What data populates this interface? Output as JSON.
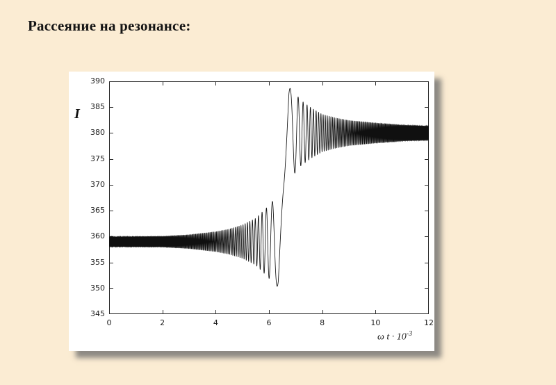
{
  "slide": {
    "title": "Рассеяние на резонансе:",
    "background_color": "#FBECD3",
    "title_color": "#141414"
  },
  "panel": {
    "background_color": "#FFFFFF",
    "shadow_color": "#686868"
  },
  "chart_data": {
    "type": "line",
    "title": "",
    "xlabel": "ω t · 10⁻³",
    "xlabel_main": "ω t · 10",
    "xlabel_sup": "-3",
    "ylabel": "I",
    "xlim": [
      0,
      12
    ],
    "ylim": [
      345,
      390
    ],
    "xticks": [
      0,
      2,
      4,
      6,
      8,
      10,
      12
    ],
    "yticks": [
      345,
      350,
      355,
      360,
      365,
      370,
      375,
      380,
      385,
      390
    ],
    "grid": false,
    "box": true,
    "tick_direction": "in",
    "tick_length": 5,
    "line_color": "#101010",
    "axis_color": "#2b2b2b",
    "legend": null,
    "description": "Scanned black-and-white plot of intensity I versus ωt·10⁻³ for scattering at a resonance crossing: the signal oscillates rapidly about I≈359 with slowly growing amplitude, makes one large swing (minimum ≈349.5 near x≈6.5, maximum ≈389.5 near x≈6.7) as it crosses the resonance at x≈6.55, then rings down with decaying oscillations about the new level I≈380.",
    "signal_model": {
      "resonance_center": 6.55,
      "baseline_before": 359,
      "baseline_after": 380,
      "center_transition": [
        [
          0,
          359
        ],
        [
          6.35,
          359
        ],
        [
          6.75,
          380
        ],
        [
          12,
          380
        ]
      ],
      "amplitude_envelope": [
        [
          0,
          0.9
        ],
        [
          2,
          1.0
        ],
        [
          3,
          1.3
        ],
        [
          4,
          1.9
        ],
        [
          4.5,
          2.4
        ],
        [
          5,
          3.2
        ],
        [
          5.5,
          4.5
        ],
        [
          5.9,
          6.5
        ],
        [
          6.2,
          8.2
        ],
        [
          6.55,
          9.6
        ],
        [
          6.9,
          8.2
        ],
        [
          7.2,
          6.3
        ],
        [
          7.6,
          4.8
        ],
        [
          8,
          3.6
        ],
        [
          8.5,
          2.9
        ],
        [
          9,
          2.4
        ],
        [
          10,
          1.9
        ],
        [
          11,
          1.5
        ],
        [
          12,
          1.3
        ]
      ],
      "phase_cycles_coeff": 4.2,
      "extremes": {
        "min": 349.5,
        "max": 389.5
      },
      "samples": 26000
    }
  }
}
